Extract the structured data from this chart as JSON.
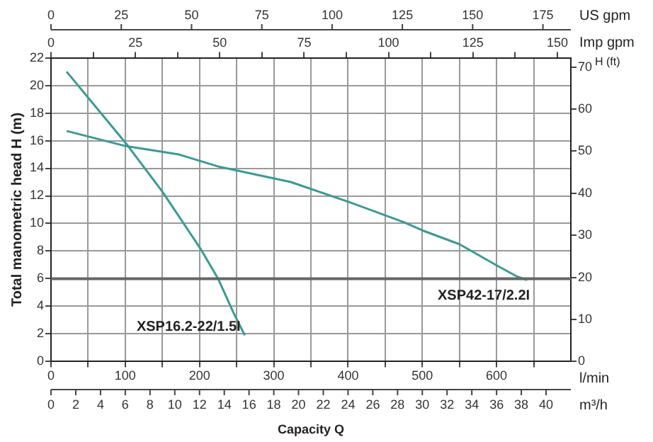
{
  "chart_data": {
    "type": "line",
    "xlabel": "l/min",
    "x2label": "Imp gpm",
    "ylabel": "Total manometric head H (m)",
    "y2label": "H (ft)",
    "annotations": [
      "Capacity Q",
      "0",
      "2",
      "4",
      "6",
      "8",
      "10",
      "12",
      "14",
      "16",
      "18",
      "20",
      "22",
      "24",
      "26",
      "28",
      "30",
      "32",
      "34",
      "36",
      "38",
      "40",
      "m³/h",
      "0",
      "25",
      "50",
      "75",
      "100",
      "125",
      "150",
      "175",
      "US gpm"
    ],
    "series": [
      {
        "name": "XSP16.2-22/1.5I",
        "color": "#3a9a94",
        "x": [
          21,
          101,
          150,
          201,
          225,
          246,
          261
        ],
        "values": [
          21.0,
          15.8,
          12.3,
          8.2,
          6.0,
          3.5,
          1.9
        ]
      },
      {
        "name": "XSP42-17/2.2I",
        "color": "#3a9a94",
        "x": [
          21,
          101,
          172,
          227,
          323,
          399,
          475,
          500,
          550,
          599,
          626,
          641
        ],
        "values": [
          16.7,
          15.6,
          15.0,
          14.1,
          13.0,
          11.6,
          10.1,
          9.5,
          8.5,
          7.0,
          6.2,
          5.9
        ]
      }
    ],
    "xlim": [
      0,
      700
    ],
    "xticks": [
      0,
      {
        "value": 50,
        "label": null
      },
      100,
      {
        "value": 150,
        "label": null
      },
      200,
      {
        "value": 250,
        "label": null
      },
      300,
      {
        "value": 350,
        "label": null
      },
      400,
      {
        "value": 450,
        "label": null
      },
      500,
      {
        "value": 550,
        "label": null
      },
      600,
      {
        "value": 650,
        "label": null
      }
    ],
    "x2lim": [
      0,
      154
    ],
    "x2ticks": [
      0,
      {
        "value": 12.5,
        "label": null
      },
      25,
      {
        "value": 37.5,
        "label": null
      },
      50,
      {
        "value": 62.5,
        "label": null
      },
      75,
      {
        "value": 87.5,
        "label": null
      },
      100,
      {
        "value": 112.5,
        "label": null
      },
      125,
      {
        "value": 137.5,
        "label": null
      },
      150
    ],
    "ylim": [
      0,
      22
    ],
    "yticks": [
      0,
      2,
      4,
      6,
      8,
      10,
      12,
      14,
      16,
      18,
      20,
      22
    ],
    "y2lim": [
      0,
      72.2
    ],
    "y2ticks": [
      0,
      10,
      20,
      30,
      40,
      50,
      60,
      70
    ],
    "ref_lines": [
      {
        "axis": "y",
        "value": 6,
        "color": "#666666"
      }
    ],
    "grid": true,
    "legend": false,
    "marker": "none",
    "line_style": "solid"
  }
}
